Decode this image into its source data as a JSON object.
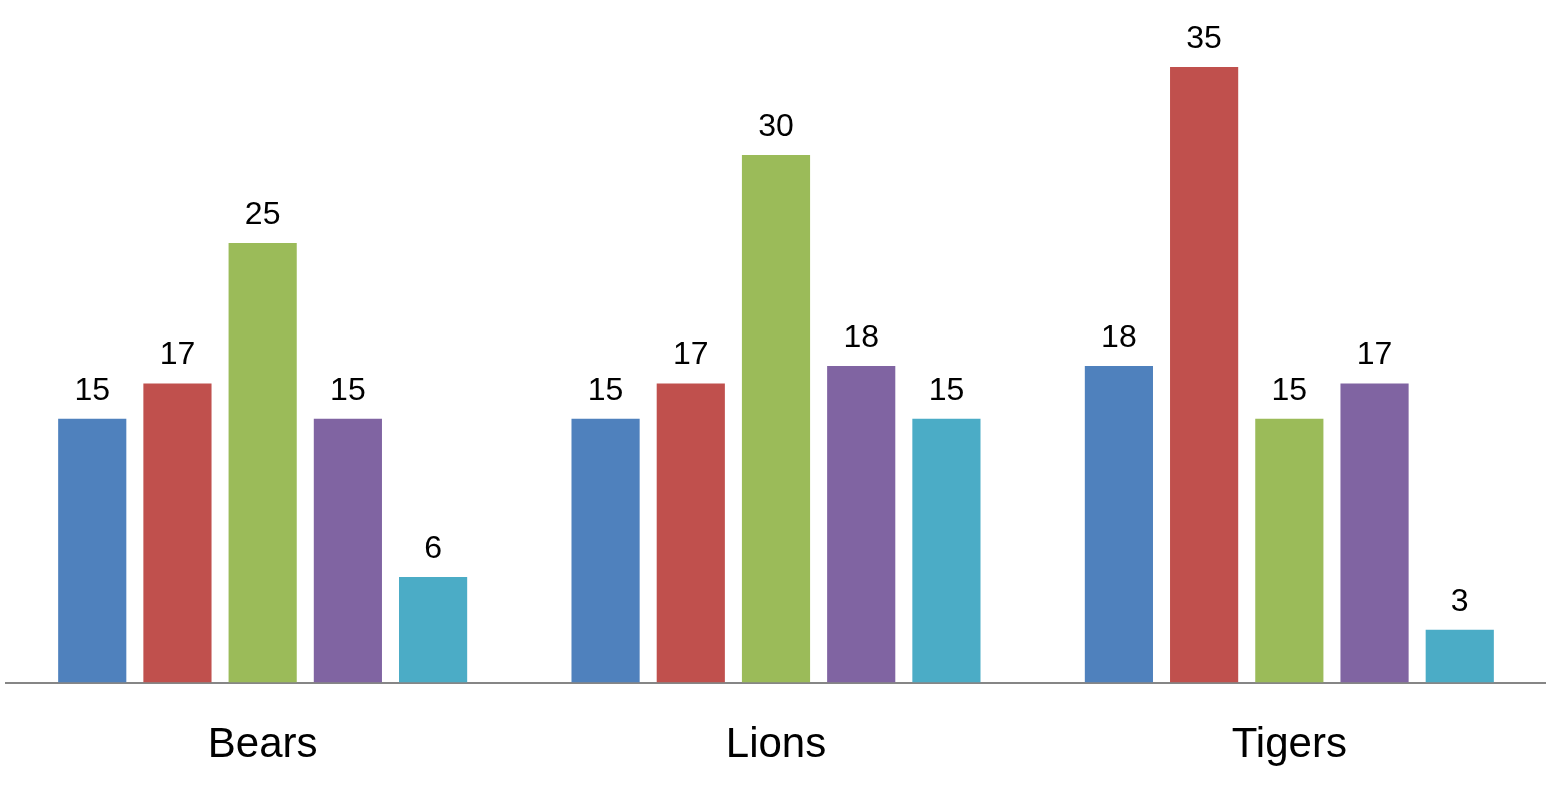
{
  "chart_data": {
    "type": "bar",
    "categories": [
      "Bears",
      "Lions",
      "Tigers"
    ],
    "series": [
      {
        "color": "#4f81bd",
        "values": [
          15,
          15,
          18
        ]
      },
      {
        "color": "#c0504d",
        "values": [
          17,
          17,
          35
        ]
      },
      {
        "color": "#9bbb59",
        "values": [
          25,
          30,
          15
        ]
      },
      {
        "color": "#8064a2",
        "values": [
          15,
          18,
          17
        ]
      },
      {
        "color": "#4bacc6",
        "values": [
          6,
          15,
          3
        ]
      }
    ],
    "data_labels": true,
    "grid": false,
    "legend": false,
    "tick_labels": "x"
  }
}
